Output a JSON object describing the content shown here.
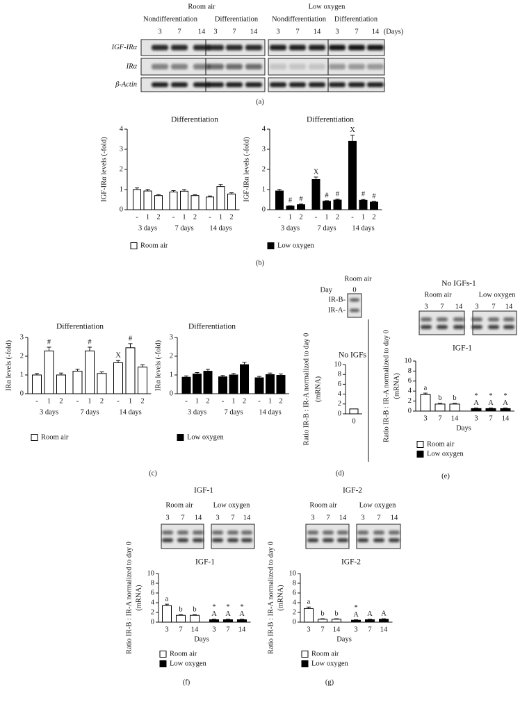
{
  "gels": {
    "a": {
      "conditions": [
        {
          "label": "Room air",
          "groups": [
            {
              "label": "Nondifferentiation",
              "days": [
                "3",
                "7",
                "14"
              ]
            },
            {
              "label": "Differentiation",
              "days": [
                "3",
                "7",
                "14"
              ]
            }
          ]
        },
        {
          "label": "Low oxygen",
          "groups": [
            {
              "label": "Nondifferentiation",
              "days": [
                "3",
                "7",
                "14"
              ]
            },
            {
              "label": "Differentiation",
              "days": [
                "3",
                "7",
                "14"
              ]
            }
          ]
        }
      ],
      "days_unit": "(Days)",
      "rows": [
        "IGF-IRα",
        "IRα",
        "β-Actin"
      ]
    },
    "d": {
      "title": "Room air",
      "day_label": "Day",
      "days": [
        "0"
      ],
      "bands": [
        "IR-B-",
        "IR-A-"
      ]
    },
    "e": {
      "title": "No IGFs-1",
      "conditions": [
        {
          "label": "Room air",
          "days": [
            "3",
            "7",
            "14"
          ]
        },
        {
          "label": "Low oxygen",
          "days": [
            "3",
            "7",
            "14"
          ]
        }
      ]
    },
    "f": {
      "title": "IGF-1",
      "conditions": [
        {
          "label": "Room air",
          "days": [
            "3",
            "7",
            "14"
          ]
        },
        {
          "label": "Low oxygen",
          "days": [
            "3",
            "7",
            "14"
          ]
        }
      ]
    },
    "g": {
      "title": "IGF-2",
      "conditions": [
        {
          "label": "Room air",
          "days": [
            "3",
            "7",
            "14"
          ]
        },
        {
          "label": "Low oxygen",
          "days": [
            "3",
            "7",
            "14"
          ]
        }
      ]
    }
  },
  "panel_labels": {
    "a": "(a)",
    "b": "(b)",
    "c": "(c)",
    "d": "(d)",
    "e": "(e)",
    "f": "(f)",
    "g": "(g)"
  },
  "chart_data": [
    {
      "type": "bar",
      "title": "Differentiation",
      "ylabel": [
        "IGF-IRα levels (-fold)"
      ],
      "categories": [
        "-",
        "1",
        "2",
        "-",
        "1",
        "2",
        "-",
        "1",
        "2"
      ],
      "groups": [
        "3 days",
        "7 days",
        "14 days"
      ],
      "ylim": [
        0,
        4
      ],
      "yticks": [
        0,
        1,
        2,
        3,
        4
      ],
      "series": [
        {
          "name": "Room air",
          "color": "#ffffff",
          "values": [
            1.0,
            0.93,
            0.7,
            0.88,
            0.92,
            0.7,
            0.63,
            1.15,
            0.78
          ],
          "errors": [
            0.08,
            0.08,
            0.05,
            0.07,
            0.08,
            0.05,
            0.05,
            0.1,
            0.06
          ]
        }
      ]
    },
    {
      "type": "bar",
      "title": "Differentiation",
      "ylabel": [
        "IGF-IRα levels (-fold)"
      ],
      "categories": [
        "-",
        "1",
        "2",
        "-",
        "1",
        "2",
        "-",
        "1",
        "2"
      ],
      "groups": [
        "3 days",
        "7 days",
        "14 days"
      ],
      "ylim": [
        0,
        4
      ],
      "yticks": [
        0,
        1,
        2,
        3,
        4
      ],
      "series": [
        {
          "name": "Low oxygen",
          "color": "#000000",
          "values": [
            0.93,
            0.18,
            0.25,
            1.5,
            0.42,
            0.48,
            3.4,
            0.47,
            0.38
          ],
          "errors": [
            0.08,
            0.02,
            0.03,
            0.12,
            0.03,
            0.04,
            0.3,
            0.04,
            0.03
          ]
        }
      ],
      "annotations": [
        {
          "index": 1,
          "text": "#"
        },
        {
          "index": 2,
          "text": "#"
        },
        {
          "index": 3,
          "text": "X"
        },
        {
          "index": 4,
          "text": "#"
        },
        {
          "index": 5,
          "text": "#"
        },
        {
          "index": 6,
          "text": "X"
        },
        {
          "index": 7,
          "text": "#"
        },
        {
          "index": 8,
          "text": "#"
        }
      ]
    },
    {
      "type": "bar",
      "title": "Differentiation",
      "ylabel": [
        "IRα levels (-fold)"
      ],
      "categories": [
        "-",
        "1",
        "2",
        "-",
        "1",
        "2",
        "-",
        "1",
        "2"
      ],
      "groups": [
        "3 days",
        "7 days",
        "14 days"
      ],
      "ylim": [
        0,
        3
      ],
      "yticks": [
        0,
        1,
        2,
        3
      ],
      "series": [
        {
          "name": "Room air",
          "color": "#ffffff",
          "values": [
            1.0,
            2.28,
            1.0,
            1.2,
            2.28,
            1.08,
            1.65,
            2.45,
            1.42
          ],
          "errors": [
            0.08,
            0.2,
            0.1,
            0.1,
            0.2,
            0.08,
            0.12,
            0.22,
            0.12
          ]
        }
      ],
      "annotations": [
        {
          "index": 1,
          "text": "#"
        },
        {
          "index": 4,
          "text": "#"
        },
        {
          "index": 6,
          "text": "X"
        },
        {
          "index": 7,
          "text": "#"
        }
      ]
    },
    {
      "type": "bar",
      "title": "Differentiation",
      "ylabel": [
        "IRα levels (-fold)"
      ],
      "categories": [
        "-",
        "1",
        "2",
        "-",
        "1",
        "2",
        "-",
        "1",
        "2"
      ],
      "groups": [
        "3 days",
        "7 days",
        "14 days"
      ],
      "ylim": [
        0,
        3
      ],
      "yticks": [
        0,
        1,
        2,
        3
      ],
      "series": [
        {
          "name": "Low oxygen",
          "color": "#000000",
          "values": [
            0.88,
            1.05,
            1.2,
            0.9,
            1.0,
            1.55,
            0.85,
            1.02,
            0.98
          ],
          "errors": [
            0.07,
            0.08,
            0.1,
            0.07,
            0.08,
            0.12,
            0.07,
            0.08,
            0.07
          ]
        }
      ]
    },
    {
      "type": "bar",
      "title": "No IGFs",
      "ylabel": [
        "Ratio IR-B : IR-A normalized to day 0",
        "(mRNA)"
      ],
      "categories": [
        "0"
      ],
      "ylim": [
        0,
        10
      ],
      "yticks": [
        0,
        2,
        4,
        6,
        8,
        10
      ],
      "series": [
        {
          "color": "#ffffff",
          "values": [
            1
          ]
        }
      ]
    },
    {
      "type": "bar",
      "title": "IGF-1",
      "ylabel": [
        "Ratio IR-B : IR-A normalized to day 0",
        "(mRNA)"
      ],
      "xlabel": "Days",
      "categories": [
        "3",
        "7",
        "14"
      ],
      "ylim": [
        0,
        10
      ],
      "yticks": [
        0,
        2,
        4,
        6,
        8,
        10
      ],
      "series": [
        {
          "name": "Room air",
          "color": "#ffffff",
          "values": [
            3.3,
            1.4,
            1.4
          ],
          "errors": [
            0.3,
            0.15,
            0.15
          ]
        },
        {
          "name": "Low oxygen",
          "color": "#000000",
          "values": [
            0.5,
            0.5,
            0.5
          ],
          "errors": [
            0.1,
            0.1,
            0.1
          ]
        }
      ],
      "annotations": [
        {
          "series": 0,
          "index": 0,
          "text": "a"
        },
        {
          "series": 0,
          "index": 1,
          "text": "b"
        },
        {
          "series": 0,
          "index": 2,
          "text": "b"
        },
        {
          "series": 1,
          "index": 0,
          "text": "A"
        },
        {
          "series": 1,
          "index": 0,
          "text": "*"
        },
        {
          "series": 1,
          "index": 1,
          "text": "A"
        },
        {
          "series": 1,
          "index": 1,
          "text": "*"
        },
        {
          "series": 1,
          "index": 2,
          "text": "A"
        },
        {
          "series": 1,
          "index": 2,
          "text": "*"
        }
      ]
    },
    {
      "type": "bar",
      "title": "IGF-1",
      "ylabel": [
        "Ratio IR-B : IR-A normalized to day 0",
        "(mRNA)"
      ],
      "xlabel": "Days",
      "categories": [
        "3",
        "7",
        "14"
      ],
      "ylim": [
        0,
        10
      ],
      "yticks": [
        0,
        2,
        4,
        6,
        8,
        10
      ],
      "series": [
        {
          "name": "Room air",
          "color": "#ffffff",
          "values": [
            3.4,
            1.4,
            1.4
          ],
          "errors": [
            0.3,
            0.15,
            0.15
          ]
        },
        {
          "name": "Low oxygen",
          "color": "#000000",
          "values": [
            0.5,
            0.5,
            0.5
          ],
          "errors": [
            0.1,
            0.1,
            0.1
          ]
        }
      ],
      "annotations": [
        {
          "series": 0,
          "index": 0,
          "text": "a"
        },
        {
          "series": 0,
          "index": 1,
          "text": "b"
        },
        {
          "series": 0,
          "index": 2,
          "text": "b"
        },
        {
          "series": 1,
          "index": 0,
          "text": "A"
        },
        {
          "series": 1,
          "index": 0,
          "text": "*"
        },
        {
          "series": 1,
          "index": 1,
          "text": "A"
        },
        {
          "series": 1,
          "index": 1,
          "text": "*"
        },
        {
          "series": 1,
          "index": 2,
          "text": "A"
        },
        {
          "series": 1,
          "index": 2,
          "text": "*"
        }
      ]
    },
    {
      "type": "bar",
      "title": "IGF-2",
      "ylabel": [
        "Ratio IR-B : IR-A normalized to day 0",
        "(mRNA)"
      ],
      "xlabel": "Days",
      "categories": [
        "3",
        "7",
        "14"
      ],
      "ylim": [
        0,
        10
      ],
      "yticks": [
        0,
        2,
        4,
        6,
        8,
        10
      ],
      "series": [
        {
          "name": "Room air",
          "color": "#ffffff",
          "values": [
            2.8,
            0.6,
            0.6
          ],
          "errors": [
            0.3,
            0.1,
            0.1
          ]
        },
        {
          "name": "Low oxygen",
          "color": "#000000",
          "values": [
            0.4,
            0.5,
            0.6
          ],
          "errors": [
            0.1,
            0.1,
            0.1
          ]
        }
      ],
      "annotations": [
        {
          "series": 0,
          "index": 0,
          "text": "a"
        },
        {
          "series": 0,
          "index": 1,
          "text": "b"
        },
        {
          "series": 0,
          "index": 2,
          "text": "b"
        },
        {
          "series": 1,
          "index": 0,
          "text": "A"
        },
        {
          "series": 1,
          "index": 0,
          "text": "*"
        },
        {
          "series": 1,
          "index": 1,
          "text": "A"
        },
        {
          "series": 1,
          "index": 2,
          "text": "A"
        }
      ]
    }
  ]
}
